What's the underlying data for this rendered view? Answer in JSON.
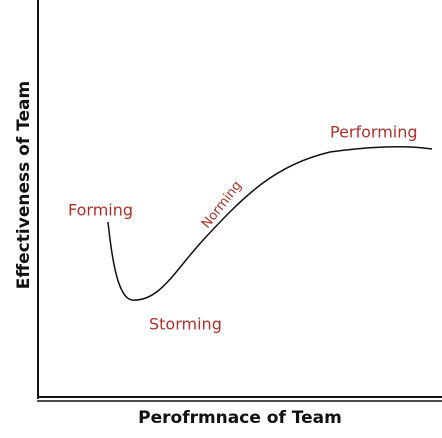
{
  "axes": {
    "y_label": "Effectiveness of Team",
    "x_label": "Perofrmnace of Team"
  },
  "stages": [
    {
      "label": "Forming"
    },
    {
      "label": "Storming"
    },
    {
      "label": "Norming"
    },
    {
      "label": "Performing"
    }
  ]
}
